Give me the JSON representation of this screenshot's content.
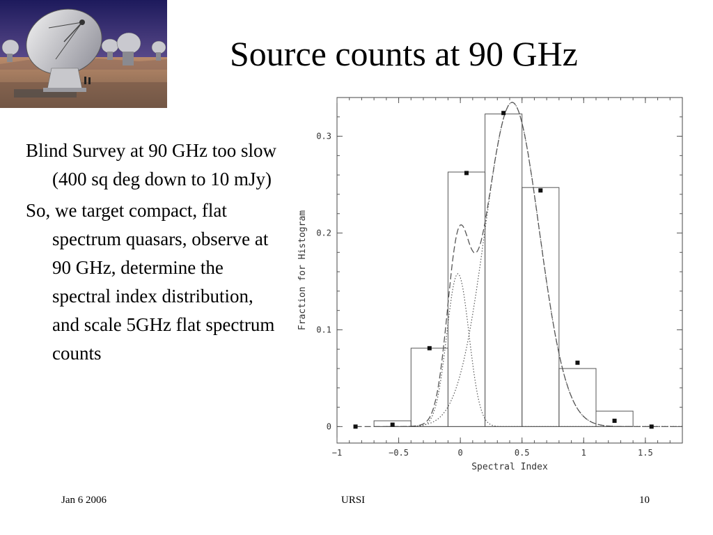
{
  "slide": {
    "title": "Source counts at 90 GHz",
    "bullets": [
      "Blind Survey at 90 GHz too slow (400 sq deg down to 10 mJy)",
      "So, we target compact, flat spectrum quasars, observe at 90 GHz, determine the spectral index distribution, and scale 5GHz flat spectrum counts"
    ],
    "photo_description_icon": "radio-telescope-array-image"
  },
  "footer": {
    "date": "Jan 6 2006",
    "center": "URSI",
    "page": "10"
  },
  "colors": {
    "background": "#ffffff",
    "text": "#000000",
    "plot_lines": "#555555",
    "sky_top": "#2a2a6e",
    "ground": "#b4866a"
  },
  "chart_data": {
    "type": "bar",
    "xlabel": "Spectral Index",
    "ylabel": "Fraction for Histogram",
    "xlim": [
      -1,
      1.8
    ],
    "ylim": [
      -0.017,
      0.34
    ],
    "xticks": [
      -1,
      -0.5,
      0,
      0.5,
      1,
      1.5
    ],
    "xtick_labels": [
      "−1",
      "−0.5",
      "0",
      "0.5",
      "1",
      "1.5"
    ],
    "yticks": [
      0,
      0.1,
      0.2,
      0.3
    ],
    "ytick_labels": [
      "0",
      "0.1",
      "0.2",
      "0.3"
    ],
    "grid": false,
    "histogram": {
      "bin_edges": [
        -0.7,
        -0.4,
        -0.1,
        0.2,
        0.5,
        0.8,
        1.1,
        1.4
      ],
      "values": [
        0.006,
        0.081,
        0.263,
        0.323,
        0.247,
        0.06,
        0.016
      ]
    },
    "points": {
      "x": [
        -0.85,
        -0.55,
        -0.25,
        0.05,
        0.35,
        0.65,
        0.95,
        1.25,
        1.55
      ],
      "y": [
        0.0,
        0.002,
        0.081,
        0.262,
        0.324,
        0.244,
        0.066,
        0.006,
        0.0
      ]
    },
    "curves": {
      "component_flat": {
        "amplitude": 0.158,
        "mean": -0.02,
        "sigma": 0.09
      },
      "component_main": {
        "amplitude": 0.335,
        "mean": 0.42,
        "sigma": 0.22
      }
    }
  }
}
